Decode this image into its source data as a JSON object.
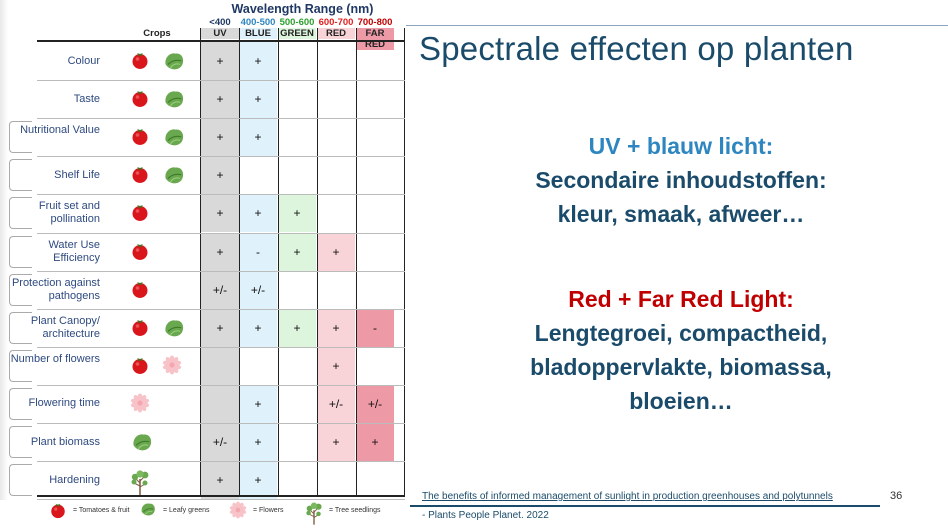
{
  "table": {
    "wavelength_title": "Wavelength Range (nm)",
    "crops_header": "Crops",
    "columns": [
      {
        "range": "<400",
        "name": "UV",
        "range_color": "#1f3864",
        "bg": "#d9d9d9"
      },
      {
        "range": "400-500",
        "name": "BLUE",
        "range_color": "#2e86c1",
        "bg": "#dff1fb"
      },
      {
        "range": "500-600",
        "name": "GREEN",
        "range_color": "#2ca02c",
        "bg": "#ddf5dd"
      },
      {
        "range": "600-700",
        "name": "RED",
        "range_color": "#e02020",
        "bg": "#f8d3d8"
      },
      {
        "range": "700-800",
        "name": "FAR RED",
        "range_color": "#c00000",
        "bg": "#ee9aa6"
      }
    ],
    "rows": [
      {
        "label": "Colour",
        "crops": [
          "tomato-icon",
          "leafy-greens-icon"
        ],
        "cells": [
          "+",
          "+",
          "",
          "",
          ""
        ]
      },
      {
        "label": "Taste",
        "crops": [
          "tomato-icon",
          "leafy-greens-icon"
        ],
        "cells": [
          "+",
          "+",
          "",
          "",
          ""
        ]
      },
      {
        "label": "Nutritional Value",
        "crops": [
          "tomato-icon",
          "leafy-greens-icon"
        ],
        "cells": [
          "+",
          "+",
          "",
          "",
          ""
        ]
      },
      {
        "label": "Shelf Life",
        "crops": [
          "tomato-icon",
          "leafy-greens-icon"
        ],
        "cells": [
          "+",
          "",
          "",
          "",
          ""
        ]
      },
      {
        "label": "Fruit set and pollination",
        "crops": [
          "tomato-icon"
        ],
        "cells": [
          "+",
          "+",
          "+",
          "",
          ""
        ]
      },
      {
        "label": "Water Use Efficiency",
        "crops": [
          "tomato-icon"
        ],
        "cells": [
          "+",
          "-",
          "+",
          "+",
          ""
        ]
      },
      {
        "label": "Protection against pathogens",
        "crops": [
          "tomato-icon"
        ],
        "cells": [
          "+/-",
          "+/-",
          "",
          "",
          ""
        ]
      },
      {
        "label": "Plant Canopy/ architecture",
        "crops": [
          "tomato-icon",
          "leafy-greens-icon"
        ],
        "cells": [
          "+",
          "+",
          "+",
          "+",
          "-"
        ]
      },
      {
        "label": "Number of flowers",
        "crops": [
          "tomato-icon",
          "flower-icon"
        ],
        "cells": [
          "",
          "",
          "",
          "+",
          ""
        ]
      },
      {
        "label": "Flowering time",
        "crops": [
          "flower-icon"
        ],
        "cells": [
          "",
          "+",
          "",
          "+/-",
          "+/-"
        ]
      },
      {
        "label": "Plant biomass",
        "crops": [
          "leafy-greens-icon"
        ],
        "cells": [
          "+/-",
          "+",
          "",
          "+",
          "+"
        ]
      },
      {
        "label": "Hardening",
        "crops": [
          "tree-seedling-icon"
        ],
        "cells": [
          "+",
          "+",
          "",
          "",
          ""
        ]
      }
    ],
    "legend": [
      {
        "icon": "tomato-icon",
        "label": "= Tomatoes & fruit"
      },
      {
        "icon": "leafy-greens-icon",
        "label": "= Leafy greens"
      },
      {
        "icon": "flower-icon",
        "label": "= Flowers"
      },
      {
        "icon": "tree-seedling-icon",
        "label": "= Tree seedlings"
      }
    ]
  },
  "slide": {
    "title": "Spectrale effecten op planten",
    "uv_heading": "UV + blauw licht:",
    "uv_line1": "Secondaire inhoudstoffen:",
    "uv_line2": "kleur, smaak, afweer…",
    "red_heading": "Red + Far Red Light:",
    "red_line1": "Lengtegroei, compactheid,",
    "red_line2": "bladoppervlakte, biomassa,",
    "red_line3": "bloeien…",
    "source_link": "The benefits of informed management of sunlight in production greenhouses and polytunnels",
    "source_journal": "-  Plants People Planet. 2022",
    "page_number": "36"
  },
  "colors": {
    "title": "#1b4b6a",
    "uv_heading": "#2e86c1",
    "red_heading": "#c00000",
    "row_label": "#2e4a80"
  }
}
